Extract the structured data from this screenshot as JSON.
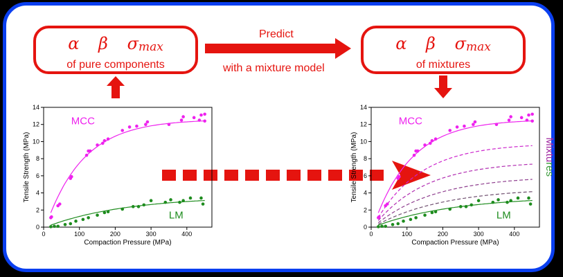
{
  "params": {
    "alpha": "α",
    "beta": "β",
    "sigma": "σ",
    "sigma_sub": "max"
  },
  "left_box": {
    "caption": "of pure components"
  },
  "right_box": {
    "caption": "of mixtures"
  },
  "arrow_labels": {
    "top": "Predict",
    "bottom": "with a mixture model"
  },
  "colors": {
    "red": "#e5140f",
    "blue": "#0a3ff0",
    "mcc": "#ee22ee",
    "lm": "#1e8c1e",
    "mixture": "#a828a8"
  },
  "chart_data": [
    {
      "type": "scatter",
      "xlabel": "Compaction Pressure (MPa)",
      "ylabel": "Tensile Strength (MPa)",
      "xlim": [
        0,
        470
      ],
      "ylim": [
        0,
        14
      ],
      "xticks": [
        0,
        100,
        200,
        300,
        400
      ],
      "yticks": [
        0,
        2,
        4,
        6,
        8,
        10,
        12,
        14
      ],
      "series": [
        {
          "name": "MCC",
          "color": "#ee22ee",
          "points": [
            [
              20,
              1.1
            ],
            [
              22,
              1.2
            ],
            [
              40,
              2.5
            ],
            [
              45,
              2.7
            ],
            [
              75,
              5.7
            ],
            [
              78,
              5.9
            ],
            [
              120,
              8.4
            ],
            [
              125,
              8.9
            ],
            [
              130,
              8.9
            ],
            [
              150,
              9.6
            ],
            [
              165,
              9.8
            ],
            [
              170,
              10.1
            ],
            [
              180,
              10.3
            ],
            [
              220,
              11.3
            ],
            [
              240,
              11.7
            ],
            [
              260,
              11.8
            ],
            [
              285,
              12.0
            ],
            [
              290,
              12.3
            ],
            [
              350,
              12.0
            ],
            [
              385,
              12.5
            ],
            [
              390,
              12.9
            ],
            [
              420,
              12.8
            ],
            [
              435,
              12.5
            ],
            [
              440,
              13.1
            ],
            [
              450,
              13.2
            ],
            [
              450,
              12.4
            ]
          ],
          "fit_max": 12.6,
          "fit_k": 0.0095
        },
        {
          "name": "LM",
          "color": "#1e8c1e",
          "points": [
            [
              20,
              0.05
            ],
            [
              30,
              0.1
            ],
            [
              40,
              0.1
            ],
            [
              60,
              0.3
            ],
            [
              75,
              0.4
            ],
            [
              90,
              0.7
            ],
            [
              110,
              0.9
            ],
            [
              125,
              1.1
            ],
            [
              150,
              1.4
            ],
            [
              170,
              1.7
            ],
            [
              180,
              1.8
            ],
            [
              220,
              2.1
            ],
            [
              250,
              2.4
            ],
            [
              265,
              2.4
            ],
            [
              280,
              2.6
            ],
            [
              300,
              3.1
            ],
            [
              340,
              2.9
            ],
            [
              355,
              3.2
            ],
            [
              380,
              2.9
            ],
            [
              390,
              3.1
            ],
            [
              410,
              3.4
            ],
            [
              440,
              3.4
            ],
            [
              445,
              2.7
            ]
          ],
          "fit_max": 3.6,
          "fit_k": 0.0045
        }
      ],
      "annotations": [
        "MCC",
        "LM"
      ]
    },
    {
      "type": "scatter",
      "xlabel": "Compaction Pressure (MPa)",
      "ylabel": "Tensile Strength (MPa)",
      "xlim": [
        0,
        470
      ],
      "ylim": [
        0,
        14
      ],
      "xticks": [
        0,
        100,
        200,
        300,
        400
      ],
      "yticks": [
        0,
        2,
        4,
        6,
        8,
        10,
        12,
        14
      ],
      "series": [
        {
          "name": "MCC",
          "color": "#ee22ee",
          "points": [
            [
              20,
              1.1
            ],
            [
              22,
              1.2
            ],
            [
              40,
              2.5
            ],
            [
              45,
              2.7
            ],
            [
              75,
              5.7
            ],
            [
              78,
              5.9
            ],
            [
              120,
              8.4
            ],
            [
              125,
              8.9
            ],
            [
              130,
              8.9
            ],
            [
              150,
              9.6
            ],
            [
              165,
              9.8
            ],
            [
              170,
              10.1
            ],
            [
              180,
              10.3
            ],
            [
              220,
              11.3
            ],
            [
              240,
              11.7
            ],
            [
              260,
              11.8
            ],
            [
              285,
              12.0
            ],
            [
              290,
              12.3
            ],
            [
              350,
              12.0
            ],
            [
              385,
              12.5
            ],
            [
              390,
              12.9
            ],
            [
              420,
              12.8
            ],
            [
              435,
              12.5
            ],
            [
              440,
              13.1
            ],
            [
              450,
              13.2
            ],
            [
              450,
              12.4
            ]
          ],
          "fit_max": 12.6,
          "fit_k": 0.0095
        },
        {
          "name": "LM",
          "color": "#1e8c1e",
          "points": [
            [
              20,
              0.05
            ],
            [
              30,
              0.1
            ],
            [
              40,
              0.1
            ],
            [
              60,
              0.3
            ],
            [
              75,
              0.4
            ],
            [
              90,
              0.7
            ],
            [
              110,
              0.9
            ],
            [
              125,
              1.1
            ],
            [
              150,
              1.4
            ],
            [
              170,
              1.7
            ],
            [
              180,
              1.8
            ],
            [
              220,
              2.1
            ],
            [
              250,
              2.4
            ],
            [
              265,
              2.4
            ],
            [
              280,
              2.6
            ],
            [
              300,
              3.1
            ],
            [
              340,
              2.9
            ],
            [
              355,
              3.2
            ],
            [
              380,
              2.9
            ],
            [
              390,
              3.1
            ],
            [
              410,
              3.4
            ],
            [
              440,
              3.4
            ],
            [
              445,
              2.7
            ]
          ],
          "fit_max": 3.6,
          "fit_k": 0.0045
        }
      ],
      "mixture_curves": [
        {
          "color": "#cc22cc",
          "max": 9.8,
          "k": 0.008
        },
        {
          "color": "#b02ab0",
          "max": 7.7,
          "k": 0.007
        },
        {
          "color": "#8e3e8e",
          "max": 6.0,
          "k": 0.006
        },
        {
          "color": "#6e4e6e",
          "max": 4.6,
          "k": 0.0052
        }
      ],
      "annotations": [
        "MCC",
        "LM",
        "Mixtures"
      ]
    }
  ]
}
